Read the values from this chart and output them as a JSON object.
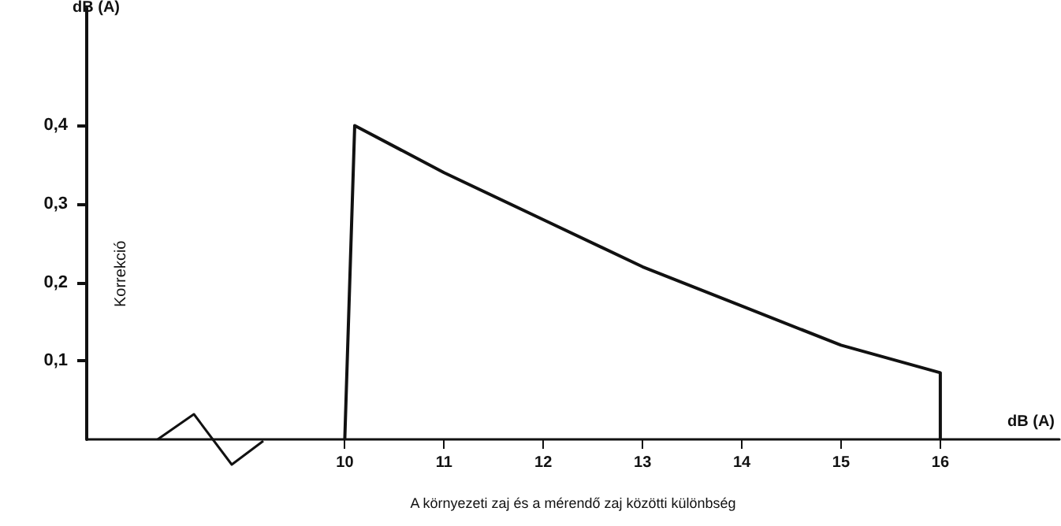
{
  "chart_data": {
    "type": "line",
    "xlabel": "A környezeti zaj és a mérendő zaj közötti különbség",
    "ylabel": "Korrekció",
    "annotations": [
      "dB (A)",
      "dB (A)"
    ],
    "series": [
      {
        "color": "#111111",
        "x": [
          10,
          10.1,
          11,
          12,
          13,
          14,
          15,
          16,
          16
        ],
        "values": [
          0,
          0.4,
          0.34,
          0.28,
          0.22,
          0.17,
          0.12,
          0.085,
          0
        ]
      }
    ],
    "xlim": [
      7.4,
      17.2
    ],
    "xticks": [
      10,
      11,
      12,
      13,
      14,
      15,
      16
    ],
    "ylim": [
      0,
      0.55
    ],
    "yticks": [
      {
        "value": 0.1,
        "label": "0,1"
      },
      {
        "value": 0.2,
        "label": "0,2"
      },
      {
        "value": 0.3,
        "label": "0,3"
      },
      {
        "value": 0.4,
        "label": "0,4"
      }
    ],
    "grid": false,
    "marker": "none",
    "line_style": "solid"
  }
}
